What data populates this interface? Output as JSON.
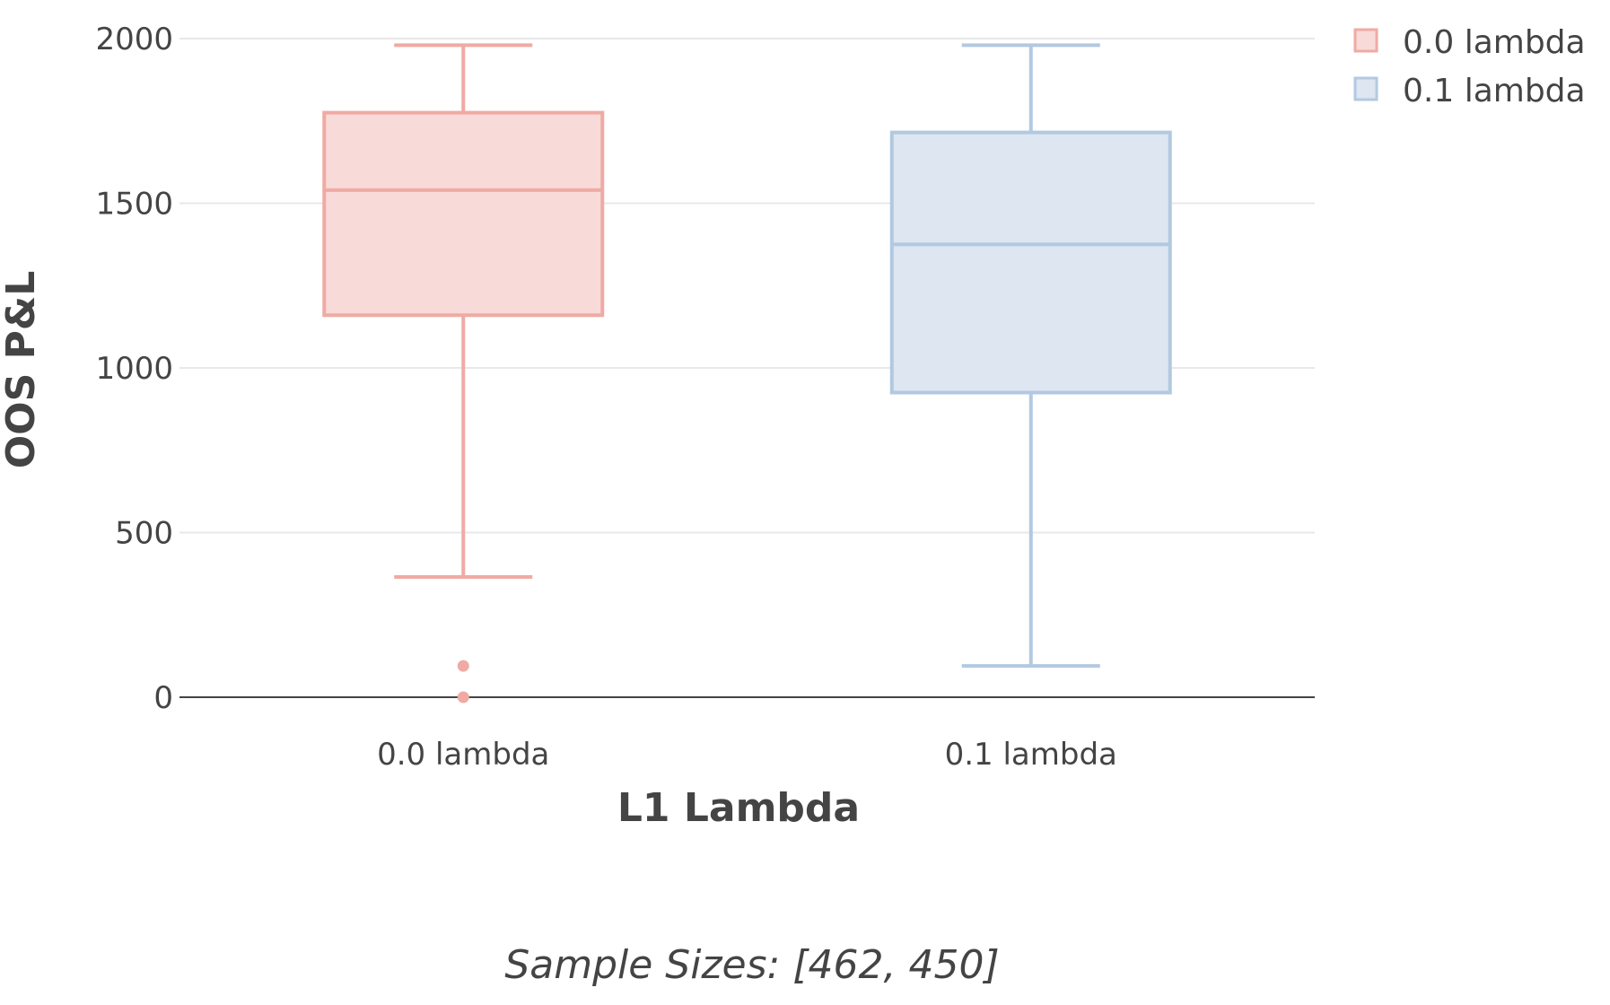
{
  "chart_data": {
    "type": "box",
    "xlabel": "L1 Lambda",
    "ylabel": "OOS P&L",
    "categories": [
      "0.0 lambda",
      "0.1 lambda"
    ],
    "ylim": [
      0,
      2000
    ],
    "yticks": [
      0,
      500,
      1000,
      1500,
      2000
    ],
    "ytick_labels": [
      "0",
      "500",
      "1000",
      "1500",
      "2000"
    ],
    "grid": true,
    "legend_position": "top-right",
    "series": [
      {
        "name": "0.0 lambda",
        "category": "0.0 lambda",
        "color": "#f0aaa4",
        "fill": "#f8dbd8",
        "whisker_low": 365,
        "q1": 1160,
        "median": 1540,
        "q3": 1775,
        "whisker_high": 1980,
        "outliers": [
          95,
          0
        ]
      },
      {
        "name": "0.1 lambda",
        "category": "0.1 lambda",
        "color": "#b2c9e0",
        "fill": "#dde6f1",
        "whisker_low": 95,
        "q1": 925,
        "median": 1375,
        "q3": 1715,
        "whisker_high": 1980,
        "outliers": []
      }
    ],
    "annotation": "Sample Sizes: [462, 450]"
  }
}
